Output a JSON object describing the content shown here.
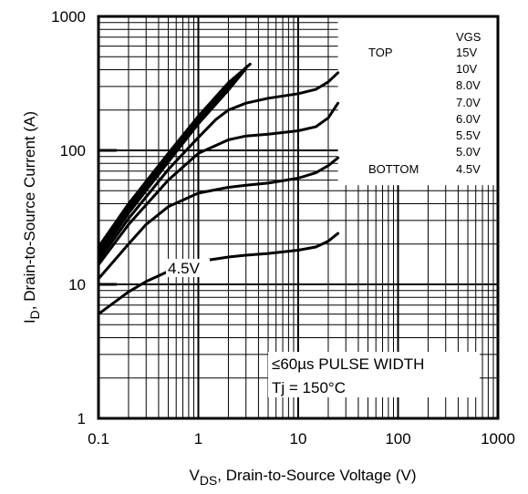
{
  "chart_data": {
    "type": "line",
    "title": "",
    "xlabel": {
      "main": "V",
      "sub": "DS",
      "rest": ", Drain-to-Source Voltage (V)"
    },
    "ylabel": {
      "main": "I",
      "sub": "D",
      "rest": ", Drain-to-Source Current (A)"
    },
    "x_scale": "log",
    "y_scale": "log",
    "xlim": [
      0.1,
      1000
    ],
    "ylim": [
      1,
      1000
    ],
    "x_ticks": [
      "0.1",
      "1",
      "10",
      "100",
      "1000"
    ],
    "y_ticks": [
      "1",
      "10",
      "100",
      "1000"
    ],
    "grid": true,
    "legend": {
      "title": "VGS",
      "top_label": "TOP",
      "bottom_label": "BOTTOM",
      "entries": [
        "15V",
        "10V",
        "8.0V",
        "7.0V",
        "6.0V",
        "5.5V",
        "5.0V",
        "4.5V"
      ]
    },
    "annotations": {
      "curve_label": "4.5V",
      "pulse_prefix": "≤",
      "pulse_text": "60µs PULSE WIDTH",
      "tj": "Tj = 150°C"
    },
    "series": [
      {
        "name": "15V",
        "x": [
          0.1,
          0.2,
          0.5,
          1,
          2,
          3.3
        ],
        "y": [
          19,
          40,
          95,
          180,
          320,
          440
        ]
      },
      {
        "name": "10V",
        "x": [
          0.1,
          0.2,
          0.5,
          1,
          2,
          3.1
        ],
        "y": [
          18,
          38,
          90,
          172,
          305,
          425
        ]
      },
      {
        "name": "8.0V",
        "x": [
          0.1,
          0.2,
          0.5,
          1,
          2,
          3.0
        ],
        "y": [
          17,
          36,
          86,
          165,
          292,
          410
        ]
      },
      {
        "name": "7.0V",
        "x": [
          0.1,
          0.2,
          0.5,
          1,
          2,
          2.9
        ],
        "y": [
          16,
          34,
          82,
          158,
          282,
          395
        ]
      },
      {
        "name": "6.0V",
        "x": [
          0.1,
          0.2,
          0.5,
          1,
          1.5,
          2,
          3,
          5,
          10,
          15,
          20,
          25
        ],
        "y": [
          15,
          31,
          72,
          125,
          170,
          200,
          225,
          245,
          265,
          285,
          325,
          380
        ]
      },
      {
        "name": "5.5V",
        "x": [
          0.1,
          0.2,
          0.5,
          1,
          2,
          3,
          5,
          10,
          15,
          20,
          25
        ],
        "y": [
          14,
          28,
          60,
          95,
          120,
          128,
          132,
          140,
          150,
          175,
          225
        ]
      },
      {
        "name": "5.0V",
        "x": [
          0.1,
          0.2,
          0.3,
          0.5,
          1,
          2,
          3,
          5,
          10,
          15,
          20,
          25
        ],
        "y": [
          11,
          20,
          28,
          38,
          48,
          53,
          55,
          57,
          62,
          68,
          77,
          88
        ]
      },
      {
        "name": "4.5V",
        "x": [
          0.1,
          0.2,
          0.3,
          0.5,
          1,
          2,
          3,
          5,
          10,
          15,
          20,
          25
        ],
        "y": [
          6,
          8.8,
          10.5,
          12.5,
          14.8,
          16,
          16.5,
          17,
          18,
          19,
          21,
          24
        ]
      }
    ]
  }
}
